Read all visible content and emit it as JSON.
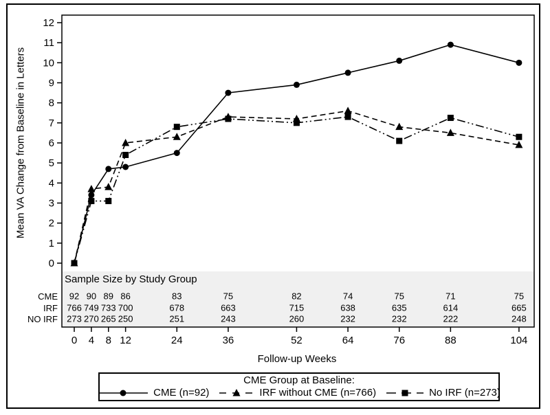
{
  "figure": {
    "background": "#ffffff"
  },
  "colors": {
    "line": "#000000",
    "table_bg": "#f0f0f0",
    "border": "#000000",
    "text": "#000000"
  },
  "legend": {
    "title": "CME Group at Baseline:"
  },
  "chart_data": {
    "type": "line",
    "title": "",
    "xlabel": "Follow-up Weeks",
    "ylabel": "Mean VA Change from Baseline in Letters",
    "x": [
      0,
      4,
      8,
      12,
      24,
      36,
      52,
      64,
      76,
      88,
      104
    ],
    "x_tick_labels": [
      "0",
      "4",
      "8",
      "12",
      "24",
      "36",
      "52",
      "64",
      "76",
      "88",
      "104"
    ],
    "y_ticks": [
      0,
      1,
      2,
      3,
      4,
      5,
      6,
      7,
      8,
      9,
      10,
      11,
      12
    ],
    "ylim": [
      0,
      12
    ],
    "grid": false,
    "legend_position": "bottom",
    "legend_title": "CME Group at Baseline:",
    "series": [
      {
        "id": "cme",
        "name": "CME (n=92)",
        "marker": "circle",
        "line_style": "solid",
        "values": [
          0,
          3.4,
          4.7,
          4.8,
          5.5,
          8.5,
          8.9,
          9.5,
          10.1,
          10.9,
          10.0
        ]
      },
      {
        "id": "irf",
        "name": "IRF without CME (n=766)",
        "marker": "triangle",
        "line_style": "dashed",
        "values": [
          0,
          3.7,
          3.8,
          6.0,
          6.3,
          7.3,
          7.2,
          7.6,
          6.8,
          6.5,
          5.9
        ]
      },
      {
        "id": "no-irf",
        "name": "No IRF (n=273)",
        "marker": "square",
        "line_style": "dash-dot-dot",
        "values": [
          0,
          3.1,
          3.1,
          5.4,
          6.8,
          7.2,
          7.0,
          7.3,
          6.1,
          7.25,
          6.3
        ]
      }
    ],
    "sample_table": {
      "title": "Sample Size by Study Group",
      "rows": [
        {
          "label": "CME",
          "values": [
            92,
            90,
            89,
            86,
            83,
            75,
            82,
            74,
            75,
            71,
            75
          ]
        },
        {
          "label": "IRF",
          "values": [
            766,
            749,
            733,
            700,
            678,
            663,
            715,
            638,
            635,
            614,
            665
          ]
        },
        {
          "label": "NO IRF",
          "values": [
            273,
            270,
            265,
            250,
            251,
            243,
            260,
            232,
            232,
            222,
            248
          ]
        }
      ]
    }
  }
}
